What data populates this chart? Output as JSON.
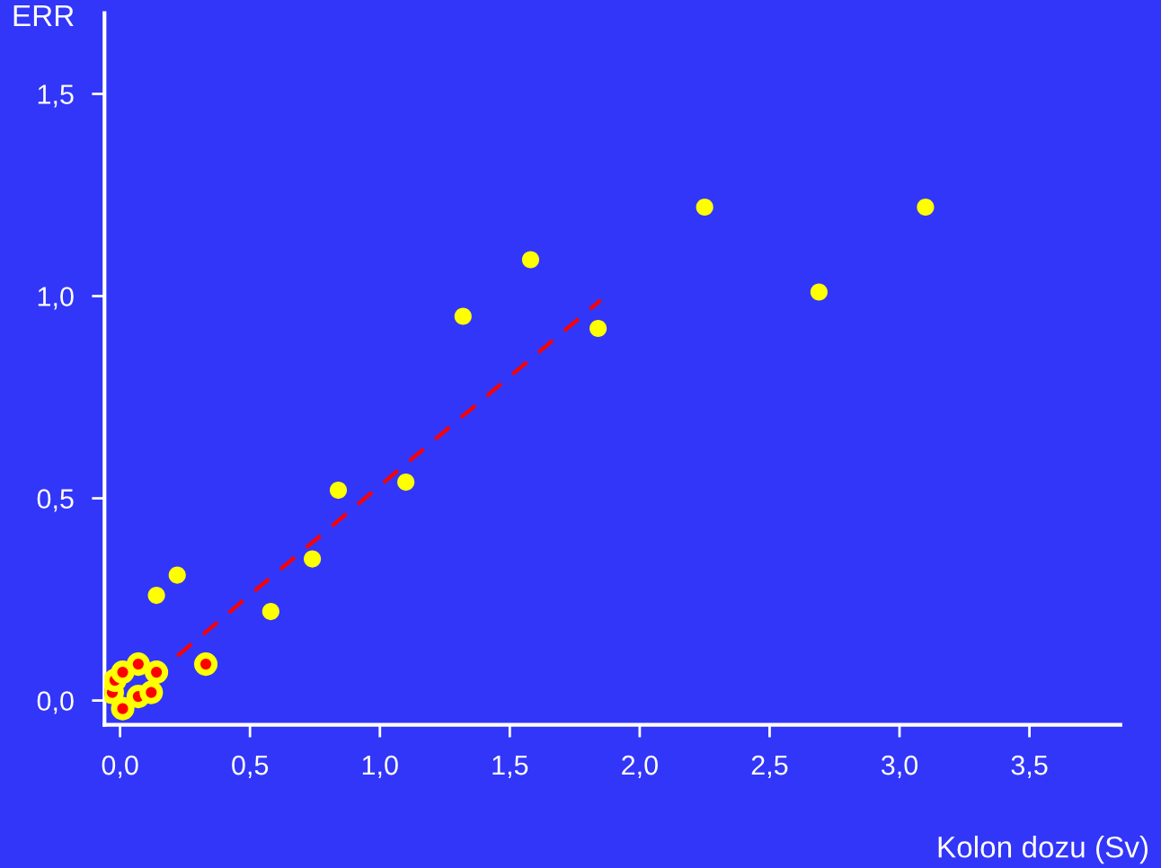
{
  "chart_data": {
    "type": "scatter",
    "xlabel": "Kolon dozu (Sv)",
    "ylabel": "ERR",
    "marker": "circle",
    "grid": false,
    "xlim": [
      -0.06,
      3.85
    ],
    "ylim": [
      -0.06,
      1.7
    ],
    "xticks": [
      {
        "value": 0,
        "label": "0,0"
      },
      {
        "value": 0.5,
        "label": "0,5"
      },
      {
        "value": 1,
        "label": "1,0"
      },
      {
        "value": 1.5,
        "label": "1,5"
      },
      {
        "value": 2,
        "label": "2,0"
      },
      {
        "value": 2.5,
        "label": "2,5"
      },
      {
        "value": 3,
        "label": "3,0"
      },
      {
        "value": 3.5,
        "label": "3,5"
      }
    ],
    "yticks": [
      {
        "value": 0,
        "label": "0,0"
      },
      {
        "value": 0.5,
        "label": "0,5"
      },
      {
        "value": 1,
        "label": "1,0"
      },
      {
        "value": 1.5,
        "label": "1,5"
      }
    ],
    "series": [
      {
        "color": "#ffff00",
        "x": [
          0.14,
          0.22,
          0.58,
          0.74,
          0.84,
          1.1,
          1.32,
          1.58,
          1.84,
          2.25,
          2.69,
          3.1
        ],
        "values": [
          0.26,
          0.31,
          0.22,
          0.35,
          0.52,
          0.54,
          0.95,
          1.09,
          0.92,
          1.22,
          1.01,
          1.22
        ]
      },
      {
        "color": "#ff0000",
        "x": [
          -0.03,
          -0.02,
          0.01,
          0.07,
          0.14,
          0.07,
          0.12,
          0.01,
          0.33
        ],
        "values": [
          0.02,
          0.05,
          0.07,
          0.09,
          0.07,
          0.01,
          0.02,
          -0.02,
          0.09
        ]
      },
      {
        "type": "line",
        "color": "#ff0000",
        "line_style": "dashed",
        "marker": "none",
        "x": [
          0.22,
          1.85
        ],
        "values": [
          0.11,
          0.99
        ]
      }
    ]
  }
}
